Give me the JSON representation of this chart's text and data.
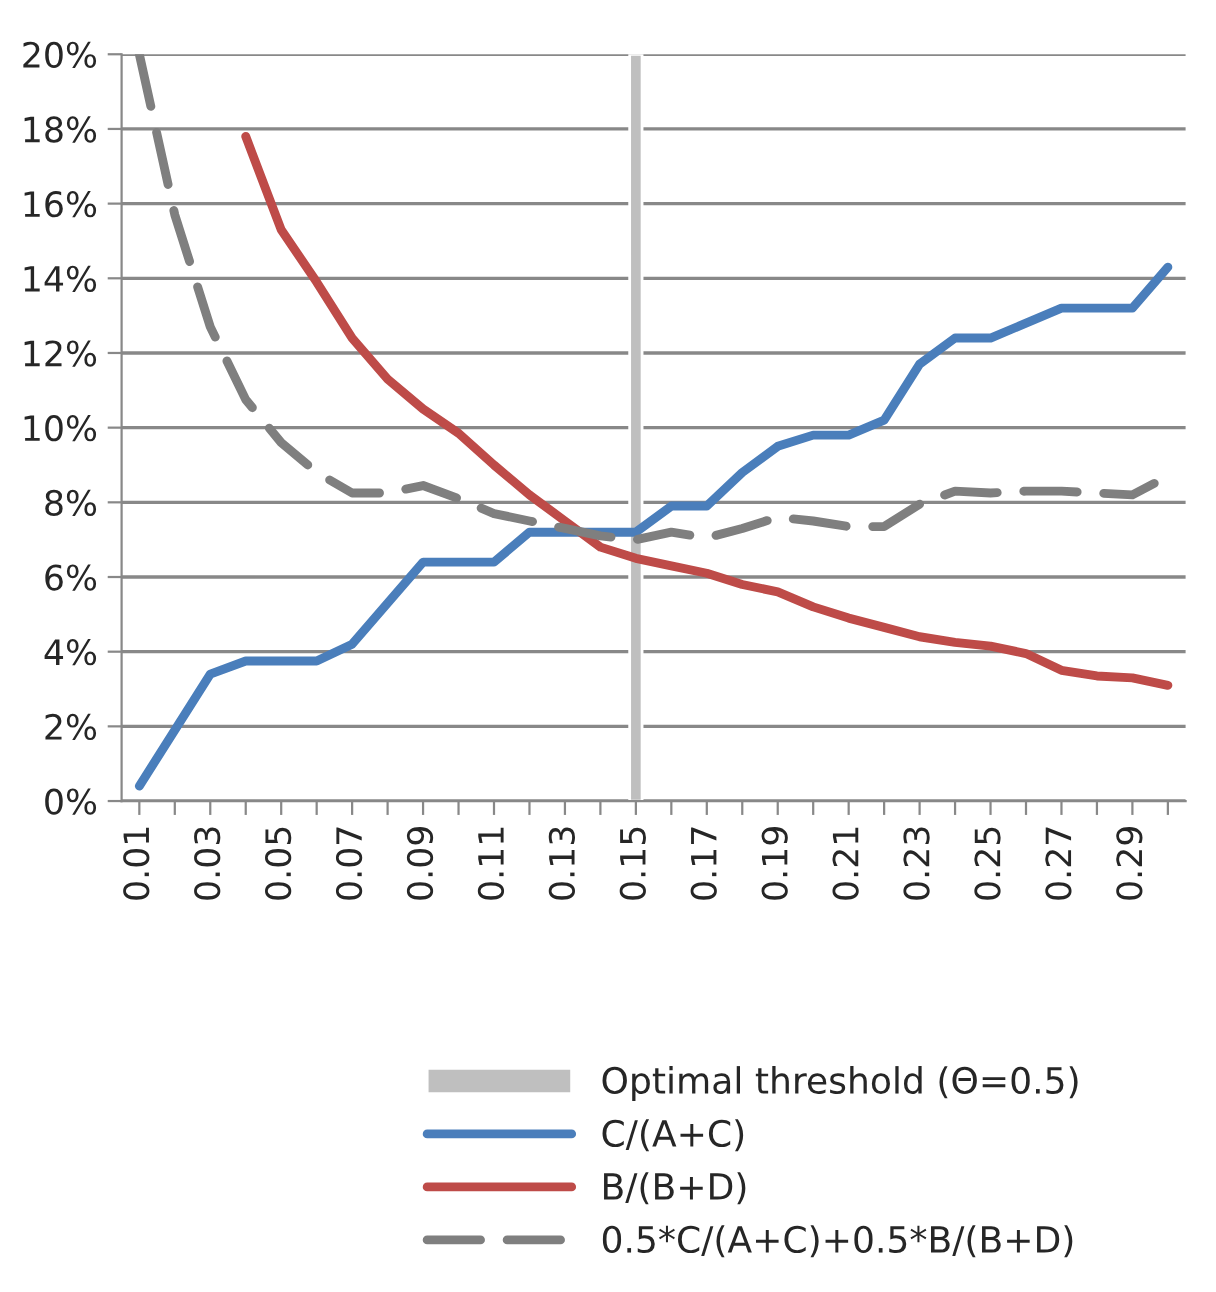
{
  "chart_data": {
    "type": "line",
    "categories": [
      "0.01",
      null,
      "0.03",
      null,
      "0.05",
      null,
      "0.07",
      null,
      "0.09",
      null,
      "0.11",
      null,
      "0.13",
      null,
      "0.15",
      null,
      "0.17",
      null,
      "0.19",
      null,
      "0.21",
      null,
      "0.23",
      null,
      "0.25",
      null,
      "0.27",
      null,
      "0.29",
      null
    ],
    "series": [
      {
        "name": "Optimal threshold (Θ=0.5)",
        "type": "bar",
        "color": "#bfbfbf",
        "values": [
          null,
          null,
          null,
          null,
          null,
          null,
          null,
          null,
          null,
          null,
          null,
          null,
          null,
          null,
          20,
          null,
          null,
          null,
          null,
          null,
          null,
          null,
          null,
          null,
          null,
          null,
          null,
          null,
          null,
          null
        ]
      },
      {
        "name": "C/(A+C)",
        "color": "#4a7ebb",
        "line_style": "solid",
        "values": [
          0.4,
          1.9,
          3.4,
          3.75,
          3.75,
          3.75,
          4.2,
          5.3,
          6.4,
          6.4,
          6.4,
          7.2,
          7.2,
          7.2,
          7.2,
          7.9,
          7.9,
          8.8,
          9.5,
          9.8,
          9.8,
          10.2,
          11.7,
          12.4,
          12.4,
          12.8,
          13.2,
          13.2,
          13.2,
          14.3
        ]
      },
      {
        "name": "B/(B+D)",
        "color": "#be4b48",
        "line_style": "solid",
        "values": [
          null,
          null,
          null,
          17.8,
          15.3,
          13.9,
          12.4,
          11.3,
          10.5,
          9.85,
          9.0,
          8.2,
          7.5,
          6.8,
          6.5,
          6.3,
          6.1,
          5.8,
          5.6,
          5.2,
          4.9,
          4.65,
          4.4,
          4.25,
          4.15,
          3.95,
          3.5,
          3.35,
          3.3,
          3.1
        ]
      },
      {
        "name": "0.5*C/(A+C)+0.5*B/(B+D)",
        "color": "#7f7f7f",
        "line_style": "dashed",
        "values": [
          20,
          15.7,
          12.7,
          10.75,
          9.6,
          8.8,
          8.25,
          8.25,
          8.45,
          8.1,
          7.7,
          7.5,
          7.3,
          7.1,
          7.0,
          7.2,
          7.05,
          7.3,
          7.6,
          7.5,
          7.35,
          7.35,
          7.95,
          8.3,
          8.25,
          8.3,
          8.3,
          8.25,
          8.2,
          8.7
        ]
      }
    ],
    "ylim": [
      0,
      20
    ],
    "yticks": [
      {
        "value": 0,
        "label": "0%"
      },
      {
        "value": 2,
        "label": "2%"
      },
      {
        "value": 4,
        "label": "4%"
      },
      {
        "value": 6,
        "label": "6%"
      },
      {
        "value": 8,
        "label": "8%"
      },
      {
        "value": 10,
        "label": "10%"
      },
      {
        "value": 12,
        "label": "12%"
      },
      {
        "value": 14,
        "label": "14%"
      },
      {
        "value": 16,
        "label": "16%"
      },
      {
        "value": 18,
        "label": "18%"
      },
      {
        "value": 20,
        "label": "20%"
      }
    ],
    "grid": "y",
    "legend": "bottom"
  }
}
